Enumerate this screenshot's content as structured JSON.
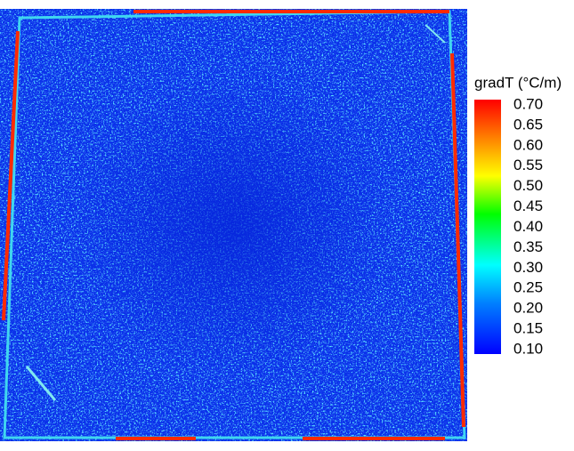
{
  "chart_data": {
    "type": "heatmap",
    "colorbar_title": "gradT (°C/m)",
    "clim": [
      0.1,
      0.7
    ],
    "cticks": [
      {
        "value": 0.7,
        "label": "0.70"
      },
      {
        "value": 0.65,
        "label": "0.65"
      },
      {
        "value": 0.6,
        "label": "0.60"
      },
      {
        "value": 0.55,
        "label": "0.55"
      },
      {
        "value": 0.5,
        "label": "0.50"
      },
      {
        "value": 0.45,
        "label": "0.45"
      },
      {
        "value": 0.4,
        "label": "0.40"
      },
      {
        "value": 0.35,
        "label": "0.35"
      },
      {
        "value": 0.3,
        "label": "0.30"
      },
      {
        "value": 0.25,
        "label": "0.25"
      },
      {
        "value": 0.2,
        "label": "0.20"
      },
      {
        "value": 0.15,
        "label": "0.15"
      },
      {
        "value": 0.1,
        "label": "0.10"
      }
    ],
    "colormap": "jet"
  }
}
